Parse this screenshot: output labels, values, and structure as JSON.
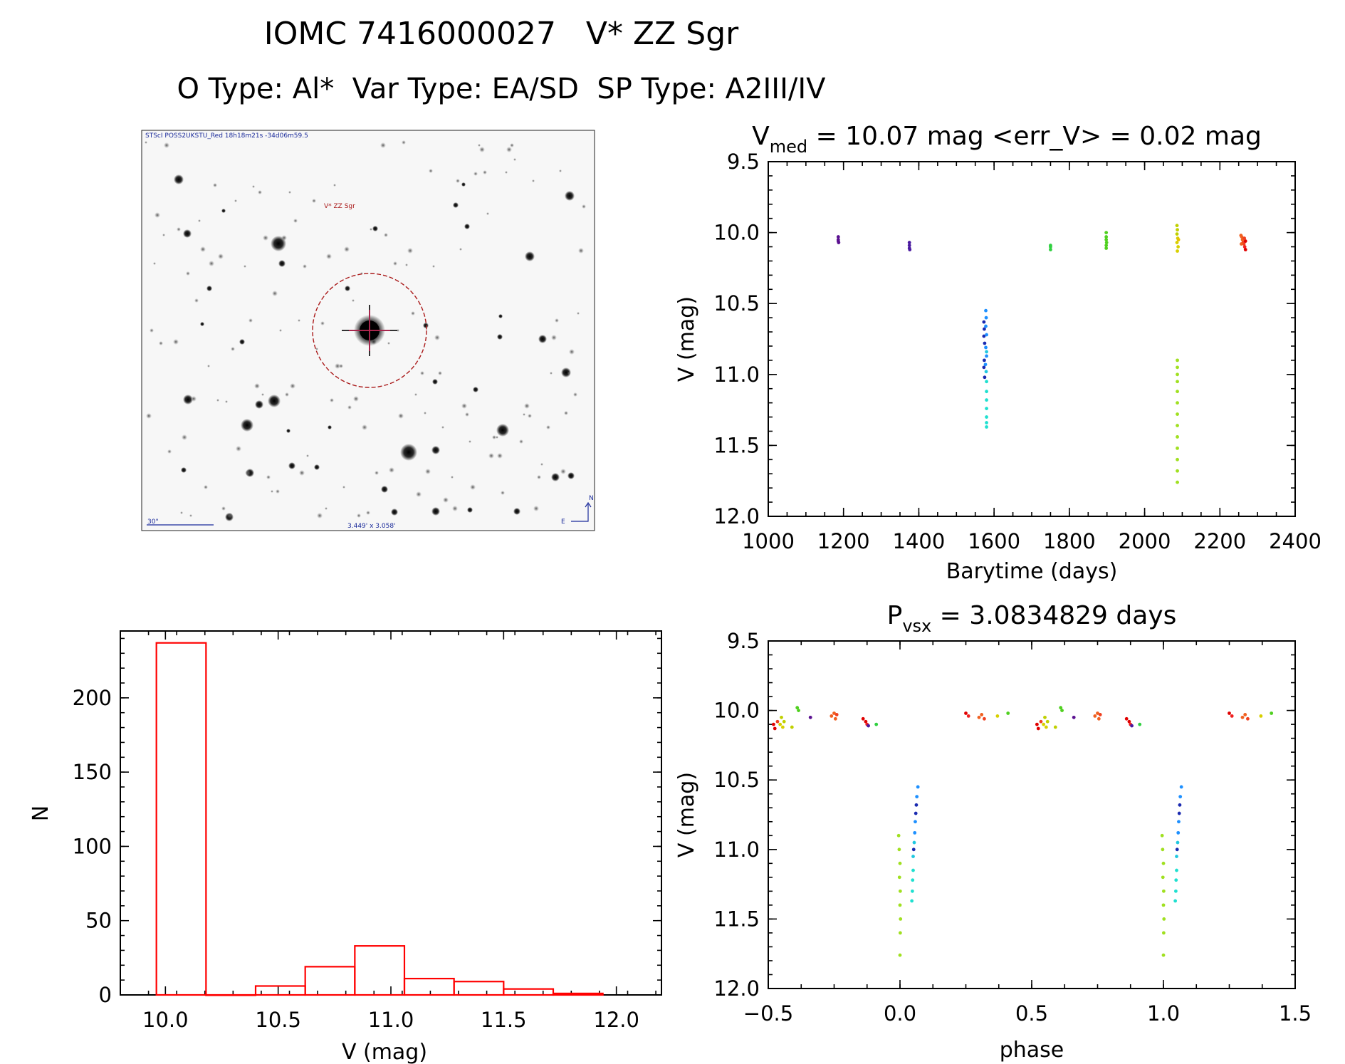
{
  "figure": {
    "title": "IOMC 7416000027   V* ZZ Sgr",
    "subtitle": "O Type: Al*  Var Type: EA/SD  SP Type: A2III/IV"
  },
  "finder_chart": {
    "header": "STScI POSS2UKSTU_Red 18h18m21s -34d06m59.5",
    "target_label": "V* ZZ Sgr",
    "scale_label": "30\"",
    "fov_label": "3.449' x 3.058'",
    "north_label": "N",
    "east_label": "E",
    "colors": {
      "annotation": "#1a2a9a",
      "target": "#aa1a1a"
    }
  },
  "chart_data": [
    {
      "id": "lightcurve",
      "type": "scatter",
      "title_prefix": "V",
      "title_sub": "med",
      "title_rest": " = 10.07 mag <err_V> = 0.02 mag",
      "xlabel": "Barytime (days)",
      "ylabel": "V (mag)",
      "xlim": [
        1000,
        2400
      ],
      "ylim": [
        12.0,
        9.5
      ],
      "y_inverted": true,
      "xticks": [
        "1000",
        "1200",
        "1400",
        "1600",
        "1800",
        "2000",
        "2200",
        "2400"
      ],
      "yticks": [
        "9.5",
        "10.0",
        "10.5",
        "11.0",
        "11.5",
        "12.0"
      ],
      "points": [
        {
          "x": 1186,
          "y": 10.03,
          "c": "#5a1090"
        },
        {
          "x": 1186,
          "y": 10.05,
          "c": "#5a1090"
        },
        {
          "x": 1186,
          "y": 10.06,
          "c": "#5a1090"
        },
        {
          "x": 1187,
          "y": 10.07,
          "c": "#5a1090"
        },
        {
          "x": 1375,
          "y": 10.07,
          "c": "#4a1aa0"
        },
        {
          "x": 1375,
          "y": 10.09,
          "c": "#4a1aa0"
        },
        {
          "x": 1375,
          "y": 10.11,
          "c": "#4a1aa0"
        },
        {
          "x": 1376,
          "y": 10.12,
          "c": "#4a1aa0"
        },
        {
          "x": 1573,
          "y": 10.63,
          "c": "#1a2ab0"
        },
        {
          "x": 1574,
          "y": 10.68,
          "c": "#1a2ab0"
        },
        {
          "x": 1573,
          "y": 10.73,
          "c": "#1a2ab0"
        },
        {
          "x": 1575,
          "y": 10.78,
          "c": "#1a2ab0"
        },
        {
          "x": 1574,
          "y": 10.9,
          "c": "#1a2ab0"
        },
        {
          "x": 1573,
          "y": 10.95,
          "c": "#1a2ab0"
        },
        {
          "x": 1575,
          "y": 11.02,
          "c": "#1a2ab0"
        },
        {
          "x": 1578,
          "y": 10.55,
          "c": "#1e90ff"
        },
        {
          "x": 1579,
          "y": 10.6,
          "c": "#1e90ff"
        },
        {
          "x": 1578,
          "y": 10.66,
          "c": "#1e90ff"
        },
        {
          "x": 1580,
          "y": 10.72,
          "c": "#1e90ff"
        },
        {
          "x": 1578,
          "y": 10.81,
          "c": "#1e90ff"
        },
        {
          "x": 1580,
          "y": 10.87,
          "c": "#1e90ff"
        },
        {
          "x": 1577,
          "y": 10.93,
          "c": "#1e90ff"
        },
        {
          "x": 1580,
          "y": 10.84,
          "c": "#20c8e0"
        },
        {
          "x": 1579,
          "y": 10.98,
          "c": "#20c8e0"
        },
        {
          "x": 1580,
          "y": 11.05,
          "c": "#20e0d0"
        },
        {
          "x": 1580,
          "y": 11.12,
          "c": "#20e0d0"
        },
        {
          "x": 1580,
          "y": 11.18,
          "c": "#20e0d0"
        },
        {
          "x": 1580,
          "y": 11.24,
          "c": "#20e0d0"
        },
        {
          "x": 1580,
          "y": 11.3,
          "c": "#20e0d0"
        },
        {
          "x": 1580,
          "y": 11.34,
          "c": "#20e0d0"
        },
        {
          "x": 1580,
          "y": 11.37,
          "c": "#20e0d0"
        },
        {
          "x": 1750,
          "y": 10.09,
          "c": "#30d040"
        },
        {
          "x": 1750,
          "y": 10.1,
          "c": "#30d040"
        },
        {
          "x": 1750,
          "y": 10.12,
          "c": "#30d040"
        },
        {
          "x": 1898,
          "y": 10.0,
          "c": "#50d020"
        },
        {
          "x": 1898,
          "y": 10.03,
          "c": "#50d020"
        },
        {
          "x": 1898,
          "y": 10.05,
          "c": "#50d020"
        },
        {
          "x": 1899,
          "y": 10.07,
          "c": "#50d020"
        },
        {
          "x": 1898,
          "y": 10.09,
          "c": "#50d020"
        },
        {
          "x": 1898,
          "y": 10.11,
          "c": "#50d020"
        },
        {
          "x": 2086,
          "y": 9.95,
          "c": "#c0d000"
        },
        {
          "x": 2087,
          "y": 9.98,
          "c": "#c0d000"
        },
        {
          "x": 2086,
          "y": 10.01,
          "c": "#c0d000"
        },
        {
          "x": 2088,
          "y": 10.04,
          "c": "#d8d000"
        },
        {
          "x": 2086,
          "y": 10.07,
          "c": "#d8d000"
        },
        {
          "x": 2089,
          "y": 10.1,
          "c": "#d8d000"
        },
        {
          "x": 2087,
          "y": 10.13,
          "c": "#d8d000"
        },
        {
          "x": 2090,
          "y": 10.05,
          "c": "#e8c000"
        },
        {
          "x": 2087,
          "y": 10.9,
          "c": "#a0e020"
        },
        {
          "x": 2087,
          "y": 10.95,
          "c": "#a0e020"
        },
        {
          "x": 2087,
          "y": 11.0,
          "c": "#a0e020"
        },
        {
          "x": 2087,
          "y": 11.05,
          "c": "#a0e020"
        },
        {
          "x": 2087,
          "y": 11.12,
          "c": "#a0e020"
        },
        {
          "x": 2087,
          "y": 11.2,
          "c": "#a0e020"
        },
        {
          "x": 2087,
          "y": 11.28,
          "c": "#a0e020"
        },
        {
          "x": 2087,
          "y": 11.36,
          "c": "#a0e020"
        },
        {
          "x": 2087,
          "y": 11.44,
          "c": "#a0e020"
        },
        {
          "x": 2087,
          "y": 11.52,
          "c": "#a0e020"
        },
        {
          "x": 2087,
          "y": 11.6,
          "c": "#a0e020"
        },
        {
          "x": 2087,
          "y": 11.68,
          "c": "#a0e020"
        },
        {
          "x": 2087,
          "y": 11.76,
          "c": "#a0e020"
        },
        {
          "x": 2256,
          "y": 10.02,
          "c": "#f06020"
        },
        {
          "x": 2258,
          "y": 10.03,
          "c": "#f06020"
        },
        {
          "x": 2260,
          "y": 10.05,
          "c": "#f06020"
        },
        {
          "x": 2262,
          "y": 10.07,
          "c": "#f04020"
        },
        {
          "x": 2264,
          "y": 10.08,
          "c": "#f04020"
        },
        {
          "x": 2266,
          "y": 10.1,
          "c": "#f02020"
        },
        {
          "x": 2268,
          "y": 10.12,
          "c": "#e00000"
        },
        {
          "x": 2268,
          "y": 10.06,
          "c": "#e00000"
        },
        {
          "x": 2257,
          "y": 10.08,
          "c": "#f06020"
        },
        {
          "x": 2265,
          "y": 10.04,
          "c": "#f04020"
        }
      ]
    },
    {
      "id": "histogram",
      "type": "bar",
      "title": "",
      "xlabel": "V (mag)",
      "ylabel": "N",
      "xlim": [
        9.8,
        12.2
      ],
      "ylim": [
        0,
        245
      ],
      "xticks": [
        "10.0",
        "10.5",
        "11.0",
        "11.5",
        "12.0"
      ],
      "yticks": [
        "0",
        "50",
        "100",
        "150",
        "200"
      ],
      "bin_edges": [
        9.96,
        10.18,
        10.4,
        10.62,
        10.84,
        11.06,
        11.28,
        11.5,
        11.72,
        11.94
      ],
      "values": [
        237,
        0,
        6,
        19,
        33,
        11,
        9,
        4,
        1
      ],
      "color": "#ff0000"
    },
    {
      "id": "phased",
      "type": "scatter",
      "title_prefix": "P",
      "title_sub": "vsx",
      "title_rest": " = 3.0834829 days",
      "xlabel": "phase",
      "ylabel": "V (mag)",
      "xlim": [
        -0.5,
        1.5
      ],
      "ylim": [
        12.0,
        9.5
      ],
      "y_inverted": true,
      "xticks": [
        "−0.5",
        "0.0",
        "0.5",
        "1.0",
        "1.5"
      ],
      "yticks": [
        "9.5",
        "10.0",
        "10.5",
        "11.0",
        "11.5",
        "12.0"
      ],
      "period_days": 3.0834829,
      "points": [
        {
          "x": -0.48,
          "y": 10.1,
          "c": "#e00000"
        },
        {
          "x": -0.475,
          "y": 10.13,
          "c": "#e00000"
        },
        {
          "x": -0.465,
          "y": 10.08,
          "c": "#f04020"
        },
        {
          "x": -0.455,
          "y": 10.1,
          "c": "#d8d000"
        },
        {
          "x": -0.45,
          "y": 10.05,
          "c": "#c0d000"
        },
        {
          "x": -0.445,
          "y": 10.12,
          "c": "#d8d000"
        },
        {
          "x": -0.44,
          "y": 10.08,
          "c": "#c0d000"
        },
        {
          "x": -0.41,
          "y": 10.12,
          "c": "#c0d000"
        },
        {
          "x": -0.39,
          "y": 9.98,
          "c": "#50d020"
        },
        {
          "x": -0.385,
          "y": 10.0,
          "c": "#50d020"
        },
        {
          "x": -0.34,
          "y": 10.05,
          "c": "#5a1090"
        },
        {
          "x": -0.26,
          "y": 10.04,
          "c": "#f06020"
        },
        {
          "x": -0.25,
          "y": 10.02,
          "c": "#f06020"
        },
        {
          "x": -0.245,
          "y": 10.06,
          "c": "#f06020"
        },
        {
          "x": -0.24,
          "y": 10.03,
          "c": "#f04020"
        },
        {
          "x": -0.14,
          "y": 10.06,
          "c": "#e00000"
        },
        {
          "x": -0.13,
          "y": 10.08,
          "c": "#e00000"
        },
        {
          "x": -0.125,
          "y": 10.1,
          "c": "#f02020"
        },
        {
          "x": -0.12,
          "y": 10.11,
          "c": "#4a1aa0"
        },
        {
          "x": -0.09,
          "y": 10.1,
          "c": "#30d040"
        },
        {
          "x": -0.005,
          "y": 10.9,
          "c": "#a0e020"
        },
        {
          "x": -0.003,
          "y": 11.0,
          "c": "#a0e020"
        },
        {
          "x": 0.0,
          "y": 11.1,
          "c": "#a0e020"
        },
        {
          "x": -0.002,
          "y": 11.2,
          "c": "#a0e020"
        },
        {
          "x": 0.001,
          "y": 11.3,
          "c": "#a0e020"
        },
        {
          "x": 0.0,
          "y": 11.4,
          "c": "#a0e020"
        },
        {
          "x": 0.002,
          "y": 11.5,
          "c": "#a0e020"
        },
        {
          "x": 0.001,
          "y": 11.6,
          "c": "#a0e020"
        },
        {
          "x": 0.0,
          "y": 11.76,
          "c": "#a0e020"
        },
        {
          "x": 0.045,
          "y": 11.37,
          "c": "#20e0d0"
        },
        {
          "x": 0.047,
          "y": 11.3,
          "c": "#20e0d0"
        },
        {
          "x": 0.048,
          "y": 11.22,
          "c": "#20e0d0"
        },
        {
          "x": 0.05,
          "y": 11.15,
          "c": "#20e0d0"
        },
        {
          "x": 0.05,
          "y": 11.05,
          "c": "#20c8e0"
        },
        {
          "x": 0.052,
          "y": 11.0,
          "c": "#1a2ab0"
        },
        {
          "x": 0.054,
          "y": 10.95,
          "c": "#20c8e0"
        },
        {
          "x": 0.056,
          "y": 10.88,
          "c": "#1e90ff"
        },
        {
          "x": 0.058,
          "y": 10.8,
          "c": "#1e90ff"
        },
        {
          "x": 0.06,
          "y": 10.74,
          "c": "#1a2ab0"
        },
        {
          "x": 0.062,
          "y": 10.68,
          "c": "#1a2ab0"
        },
        {
          "x": 0.064,
          "y": 10.62,
          "c": "#1e90ff"
        },
        {
          "x": 0.068,
          "y": 10.55,
          "c": "#1e90ff"
        },
        {
          "x": 0.25,
          "y": 10.02,
          "c": "#e00000"
        },
        {
          "x": 0.26,
          "y": 10.04,
          "c": "#f02020"
        },
        {
          "x": 0.3,
          "y": 10.05,
          "c": "#f06020"
        },
        {
          "x": 0.31,
          "y": 10.03,
          "c": "#f06020"
        },
        {
          "x": 0.32,
          "y": 10.06,
          "c": "#f04020"
        },
        {
          "x": 0.37,
          "y": 10.04,
          "c": "#d8d000"
        },
        {
          "x": 0.41,
          "y": 10.02,
          "c": "#50d020"
        },
        {
          "x": 0.52,
          "y": 10.1,
          "c": "#e00000"
        },
        {
          "x": 0.525,
          "y": 10.13,
          "c": "#e00000"
        },
        {
          "x": 0.535,
          "y": 10.08,
          "c": "#f04020"
        },
        {
          "x": 0.545,
          "y": 10.1,
          "c": "#d8d000"
        },
        {
          "x": 0.55,
          "y": 10.05,
          "c": "#c0d000"
        },
        {
          "x": 0.555,
          "y": 10.12,
          "c": "#d8d000"
        },
        {
          "x": 0.56,
          "y": 10.08,
          "c": "#c0d000"
        },
        {
          "x": 0.59,
          "y": 10.12,
          "c": "#c0d000"
        },
        {
          "x": 0.61,
          "y": 9.98,
          "c": "#50d020"
        },
        {
          "x": 0.615,
          "y": 10.0,
          "c": "#50d020"
        },
        {
          "x": 0.66,
          "y": 10.05,
          "c": "#5a1090"
        },
        {
          "x": 0.74,
          "y": 10.04,
          "c": "#f06020"
        },
        {
          "x": 0.75,
          "y": 10.02,
          "c": "#f06020"
        },
        {
          "x": 0.755,
          "y": 10.06,
          "c": "#f06020"
        },
        {
          "x": 0.76,
          "y": 10.03,
          "c": "#f04020"
        },
        {
          "x": 0.86,
          "y": 10.06,
          "c": "#e00000"
        },
        {
          "x": 0.87,
          "y": 10.08,
          "c": "#e00000"
        },
        {
          "x": 0.875,
          "y": 10.1,
          "c": "#f02020"
        },
        {
          "x": 0.88,
          "y": 10.11,
          "c": "#4a1aa0"
        },
        {
          "x": 0.91,
          "y": 10.1,
          "c": "#30d040"
        },
        {
          "x": 0.995,
          "y": 10.9,
          "c": "#a0e020"
        },
        {
          "x": 0.997,
          "y": 11.0,
          "c": "#a0e020"
        },
        {
          "x": 1.0,
          "y": 11.1,
          "c": "#a0e020"
        },
        {
          "x": 0.998,
          "y": 11.2,
          "c": "#a0e020"
        },
        {
          "x": 1.001,
          "y": 11.3,
          "c": "#a0e020"
        },
        {
          "x": 1.0,
          "y": 11.4,
          "c": "#a0e020"
        },
        {
          "x": 1.002,
          "y": 11.5,
          "c": "#a0e020"
        },
        {
          "x": 1.001,
          "y": 11.6,
          "c": "#a0e020"
        },
        {
          "x": 1.0,
          "y": 11.76,
          "c": "#a0e020"
        },
        {
          "x": 1.045,
          "y": 11.37,
          "c": "#20e0d0"
        },
        {
          "x": 1.047,
          "y": 11.3,
          "c": "#20e0d0"
        },
        {
          "x": 1.048,
          "y": 11.22,
          "c": "#20e0d0"
        },
        {
          "x": 1.05,
          "y": 11.15,
          "c": "#20e0d0"
        },
        {
          "x": 1.05,
          "y": 11.05,
          "c": "#20c8e0"
        },
        {
          "x": 1.052,
          "y": 11.0,
          "c": "#1a2ab0"
        },
        {
          "x": 1.054,
          "y": 10.95,
          "c": "#20c8e0"
        },
        {
          "x": 1.056,
          "y": 10.88,
          "c": "#1e90ff"
        },
        {
          "x": 1.058,
          "y": 10.8,
          "c": "#1e90ff"
        },
        {
          "x": 1.06,
          "y": 10.74,
          "c": "#1a2ab0"
        },
        {
          "x": 1.062,
          "y": 10.68,
          "c": "#1a2ab0"
        },
        {
          "x": 1.064,
          "y": 10.62,
          "c": "#1e90ff"
        },
        {
          "x": 1.068,
          "y": 10.55,
          "c": "#1e90ff"
        },
        {
          "x": 1.25,
          "y": 10.02,
          "c": "#e00000"
        },
        {
          "x": 1.26,
          "y": 10.04,
          "c": "#f02020"
        },
        {
          "x": 1.3,
          "y": 10.05,
          "c": "#f06020"
        },
        {
          "x": 1.31,
          "y": 10.03,
          "c": "#f06020"
        },
        {
          "x": 1.32,
          "y": 10.06,
          "c": "#f04020"
        },
        {
          "x": 1.37,
          "y": 10.04,
          "c": "#d8d000"
        },
        {
          "x": 1.41,
          "y": 10.02,
          "c": "#50d020"
        }
      ]
    }
  ]
}
